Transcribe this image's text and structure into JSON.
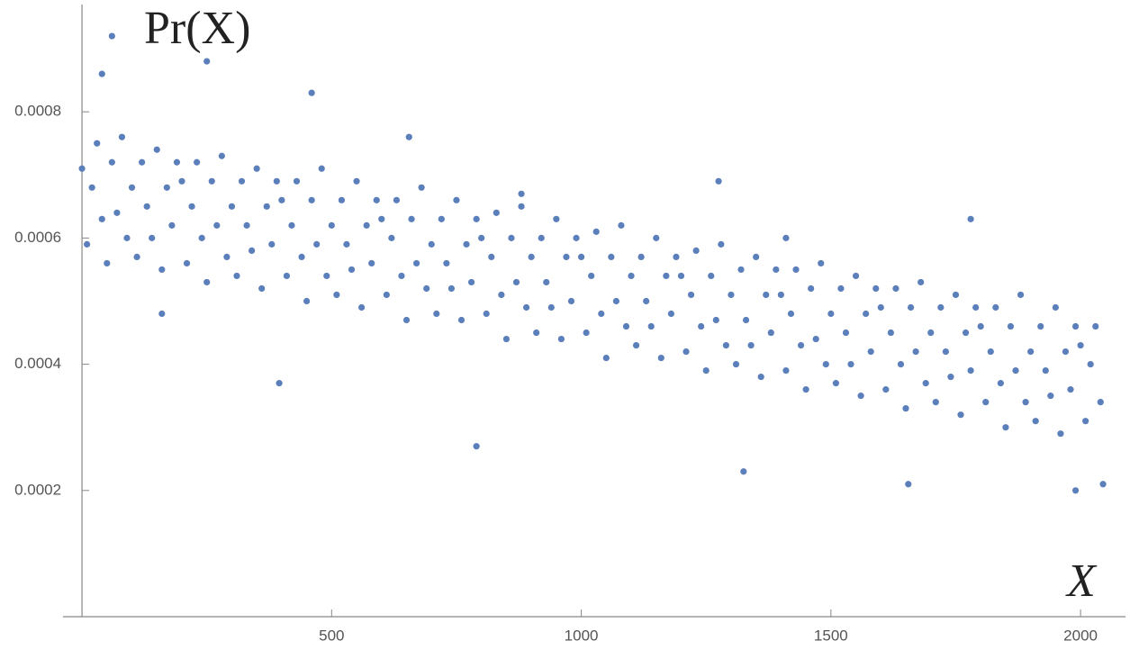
{
  "chart_data": {
    "type": "scatter",
    "ylabel": "Pr(X)",
    "xlabel": "X",
    "color": "#5b7fba",
    "xlim": [
      -38,
      2090
    ],
    "ylim": [
      0,
      0.00097
    ],
    "xticks": [
      500,
      1000,
      1500,
      2000
    ],
    "yticks": [
      0.0002,
      0.0004,
      0.0006,
      0.0008
    ],
    "x": [
      0,
      10,
      20,
      30,
      40,
      50,
      60,
      70,
      80,
      90,
      100,
      110,
      120,
      130,
      140,
      150,
      160,
      170,
      180,
      190,
      200,
      210,
      220,
      230,
      240,
      250,
      260,
      270,
      280,
      290,
      300,
      310,
      320,
      330,
      340,
      350,
      360,
      370,
      380,
      390,
      400,
      410,
      420,
      430,
      440,
      450,
      460,
      470,
      480,
      490,
      500,
      510,
      520,
      530,
      540,
      550,
      560,
      570,
      580,
      590,
      600,
      610,
      620,
      630,
      640,
      650,
      660,
      670,
      680,
      690,
      700,
      710,
      720,
      730,
      740,
      750,
      760,
      770,
      780,
      790,
      800,
      810,
      820,
      830,
      840,
      850,
      860,
      870,
      880,
      890,
      900,
      910,
      920,
      930,
      940,
      950,
      960,
      970,
      980,
      990,
      1000,
      1010,
      1020,
      1030,
      1040,
      1050,
      1060,
      1070,
      1080,
      1090,
      1100,
      1110,
      1120,
      1130,
      1140,
      1150,
      1160,
      1170,
      1180,
      1190,
      1200,
      1210,
      1220,
      1230,
      1240,
      1250,
      1260,
      1270,
      1280,
      1290,
      1300,
      1310,
      1320,
      1330,
      1340,
      1350,
      1360,
      1370,
      1380,
      1390,
      1400,
      1410,
      1420,
      1430,
      1440,
      1450,
      1460,
      1470,
      1480,
      1490,
      1500,
      1510,
      1520,
      1530,
      1540,
      1550,
      1560,
      1570,
      1580,
      1590,
      1600,
      1610,
      1620,
      1630,
      1640,
      1650,
      1660,
      1670,
      1680,
      1690,
      1700,
      1710,
      1720,
      1730,
      1740,
      1750,
      1760,
      1770,
      1780,
      1790,
      1800,
      1810,
      1820,
      1830,
      1840,
      1850,
      1860,
      1870,
      1880,
      1890,
      1900,
      1910,
      1920,
      1930,
      1940,
      1950,
      1960,
      1970,
      1980,
      1990,
      2000,
      2010,
      2020,
      2030,
      2040,
      60,
      250,
      40,
      460,
      655,
      790,
      1275,
      1780,
      1990,
      2045,
      1655,
      1325,
      160,
      395,
      880,
      1410
    ],
    "y": [
      0.00071,
      0.00059,
      0.00068,
      0.00075,
      0.00063,
      0.00056,
      0.00072,
      0.00064,
      0.00076,
      0.0006,
      0.00068,
      0.00057,
      0.00072,
      0.00065,
      0.0006,
      0.00074,
      0.00055,
      0.00068,
      0.00062,
      0.00072,
      0.00069,
      0.00056,
      0.00065,
      0.00072,
      0.0006,
      0.00053,
      0.00069,
      0.00062,
      0.00073,
      0.00057,
      0.00065,
      0.00054,
      0.00069,
      0.00062,
      0.00058,
      0.00071,
      0.00052,
      0.00065,
      0.00059,
      0.00069,
      0.00066,
      0.00054,
      0.00062,
      0.00069,
      0.00057,
      0.0005,
      0.00066,
      0.00059,
      0.00071,
      0.00054,
      0.00062,
      0.00051,
      0.00066,
      0.00059,
      0.00055,
      0.00069,
      0.00049,
      0.00062,
      0.00056,
      0.00066,
      0.00063,
      0.00051,
      0.0006,
      0.00066,
      0.00054,
      0.00047,
      0.00063,
      0.00056,
      0.00068,
      0.00052,
      0.00059,
      0.00048,
      0.00063,
      0.00056,
      0.00052,
      0.00066,
      0.00047,
      0.00059,
      0.00053,
      0.00063,
      0.0006,
      0.00048,
      0.00057,
      0.00064,
      0.00051,
      0.00044,
      0.0006,
      0.00053,
      0.00065,
      0.00049,
      0.00057,
      0.00045,
      0.0006,
      0.00053,
      0.00049,
      0.00063,
      0.00044,
      0.00057,
      0.0005,
      0.0006,
      0.00057,
      0.00045,
      0.00054,
      0.00061,
      0.00048,
      0.00041,
      0.00057,
      0.0005,
      0.00062,
      0.00046,
      0.00054,
      0.00043,
      0.00057,
      0.0005,
      0.00046,
      0.0006,
      0.00041,
      0.00054,
      0.00048,
      0.00057,
      0.00054,
      0.00042,
      0.00051,
      0.00058,
      0.00046,
      0.00039,
      0.00054,
      0.00047,
      0.00059,
      0.00043,
      0.00051,
      0.0004,
      0.00055,
      0.00047,
      0.00043,
      0.00057,
      0.00038,
      0.00051,
      0.00045,
      0.00055,
      0.00051,
      0.00039,
      0.00048,
      0.00055,
      0.00043,
      0.00036,
      0.00052,
      0.00044,
      0.00056,
      0.0004,
      0.00048,
      0.00037,
      0.00052,
      0.00045,
      0.0004,
      0.00054,
      0.00035,
      0.00048,
      0.00042,
      0.00052,
      0.00049,
      0.00036,
      0.00045,
      0.00052,
      0.0004,
      0.00033,
      0.00049,
      0.00042,
      0.00053,
      0.00037,
      0.00045,
      0.00034,
      0.00049,
      0.00042,
      0.00038,
      0.00051,
      0.00032,
      0.00045,
      0.00039,
      0.00049,
      0.00046,
      0.00034,
      0.00042,
      0.00049,
      0.00037,
      0.0003,
      0.00046,
      0.00039,
      0.00051,
      0.00034,
      0.00042,
      0.00031,
      0.00046,
      0.00039,
      0.00035,
      0.00049,
      0.00029,
      0.00042,
      0.00036,
      0.00046,
      0.00043,
      0.00031,
      0.0004,
      0.00046,
      0.00034,
      0.00092,
      0.00088,
      0.00086,
      0.00083,
      0.00076,
      0.00027,
      0.00069,
      0.00063,
      0.0002,
      0.00021,
      0.00021,
      0.00023,
      0.00048,
      0.00037,
      0.00067,
      0.0006
    ]
  }
}
